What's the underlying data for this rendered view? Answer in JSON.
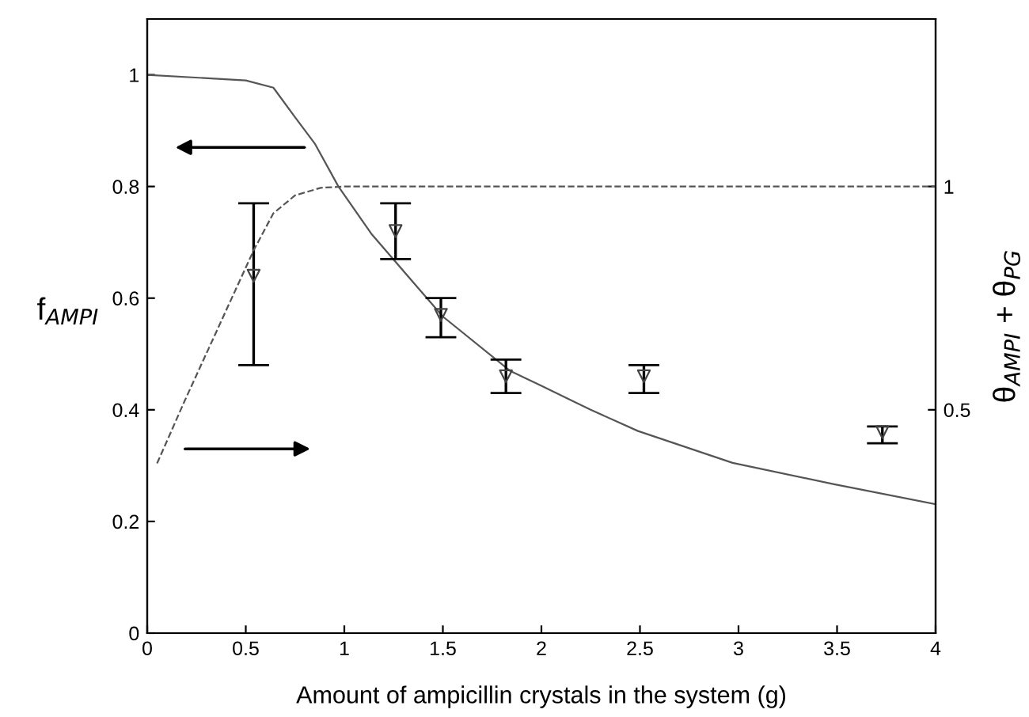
{
  "chart_data": {
    "type": "line",
    "xlabel": "Amount of ampicillin crystals in the system (g)",
    "ylabel": "f$_{AMPI}$",
    "y2label": "θ$_{AMPI}$ + θ$_{PG}$",
    "xlim": [
      0,
      4
    ],
    "xticks": [
      0,
      0.5,
      1,
      1.5,
      2,
      2.5,
      3,
      3.5,
      4
    ],
    "ylim": [
      0,
      1.1
    ],
    "yticks": [
      0,
      0.2,
      0.4,
      0.6,
      0.8,
      1
    ],
    "y2lim": [
      0,
      1.375
    ],
    "y2ticks": [
      0.5,
      1
    ],
    "grid": false,
    "series": [
      {
        "color": "#555555",
        "line_style": "solid",
        "marker": "none",
        "x": [
          0,
          0.5,
          0.64,
          0.75,
          0.85,
          0.97,
          1.14,
          1.5,
          1.84,
          2.0,
          2.25,
          2.49,
          2.97,
          3.48,
          4.0
        ],
        "values": [
          1.0,
          0.99,
          0.977,
          0.924,
          0.877,
          0.8,
          0.714,
          0.567,
          0.47,
          0.443,
          0.4,
          0.362,
          0.305,
          0.267,
          0.231
        ]
      },
      {
        "axis": "y2",
        "color": "#555555",
        "line_style": "dashed",
        "marker": "none",
        "x": [
          0.05,
          0.19,
          0.54,
          0.64,
          0.75,
          0.88,
          1.0,
          4.0
        ],
        "values": [
          0.38,
          0.52,
          0.857,
          0.94,
          0.98,
          0.997,
          1.0,
          1.0
        ]
      },
      {
        "type": "scatter",
        "color": "#444444",
        "marker": "triangle",
        "x": [
          0.54,
          1.26,
          1.49,
          1.82,
          2.52,
          3.73
        ],
        "values": [
          0.64,
          0.72,
          0.57,
          0.46,
          0.46,
          0.36
        ],
        "errors": [
          [
            0.48,
            0.77
          ],
          [
            0.67,
            0.77
          ],
          [
            0.53,
            0.6
          ],
          [
            0.43,
            0.49
          ],
          [
            0.43,
            0.48
          ],
          [
            0.34,
            0.37
          ]
        ]
      }
    ]
  }
}
